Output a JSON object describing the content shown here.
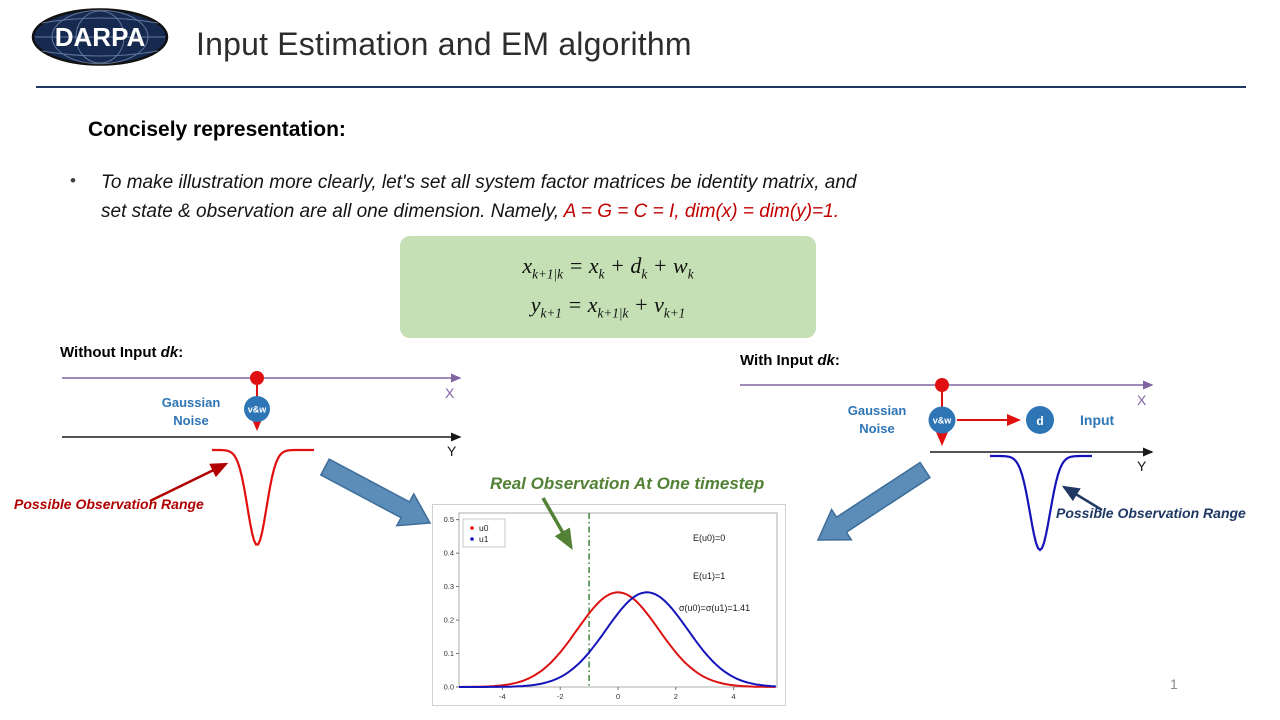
{
  "header": {
    "logo_text": "DARPA",
    "title": "Input Estimation and EM algorithm"
  },
  "body": {
    "heading": "Concisely representation:",
    "bullet": {
      "line1": "To make illustration more clearly, let's set all system factor matrices be identity matrix, and",
      "line2": "set state & observation are all one dimension.   Namely, ",
      "line2_highlight": "A = G = C  = I, dim(x) = dim(y)=1."
    },
    "equations": {
      "eq1": "x_{k+1|k} = x_k + d_k + w_k",
      "eq2": "y_{k+1} = x_{k+1|k} + v_{k+1}"
    }
  },
  "left_diagram": {
    "label_prefix": "Without Input",
    "label_var": "dk",
    "label_suffix": ":",
    "noise_line1": "Gaussian",
    "noise_line2": "Noise",
    "vw_label": "v&w",
    "x_label": "X",
    "y_label": "Y",
    "range_label": "Possible Observation Range"
  },
  "right_diagram": {
    "label_prefix": "With Input",
    "label_var": "dk",
    "label_suffix": ":",
    "noise_line1": "Gaussian",
    "noise_line2": "Noise",
    "vw_label": "v&w",
    "d_label": "d",
    "input_label": "Input",
    "x_label": "X",
    "y_label": "Y",
    "range_label": "Possible Observation Range"
  },
  "chart": {
    "caption": "Real Observation At One timestep"
  },
  "chart_data": {
    "type": "line",
    "title": "",
    "xlabel": "",
    "ylabel": "",
    "xlim": [
      -5.5,
      5.5
    ],
    "ylim": [
      0,
      0.52
    ],
    "xticks": [
      -4,
      -2,
      0,
      2,
      4
    ],
    "yticks": [
      0,
      0.1,
      0.2,
      0.3,
      0.4,
      0.5
    ],
    "grid": false,
    "legend_position": "upper left",
    "series": [
      {
        "name": "u0",
        "color": "#dd1111",
        "distribution": "normal",
        "mean": 0,
        "sigma": 1.41,
        "peak": 0.283
      },
      {
        "name": "u1",
        "color": "#1414bb",
        "distribution": "normal",
        "mean": 1,
        "sigma": 1.41,
        "peak": 0.283
      }
    ],
    "vline": {
      "x": -1,
      "color": "#2e7d32",
      "style": "dashdot"
    },
    "annotations": [
      "E(u0)=0",
      "E(u1)=1",
      "σ(u0)=σ(u1)=1.41"
    ]
  },
  "footer": {
    "page_number": "1"
  },
  "colors": {
    "accent_green_box": "#c5e0b4",
    "highlight_red": "#c00000",
    "diagram_blue": "#2e75b6",
    "purple_axis": "#8064a2",
    "navy": "#1f3864",
    "green_caption": "#538135"
  }
}
